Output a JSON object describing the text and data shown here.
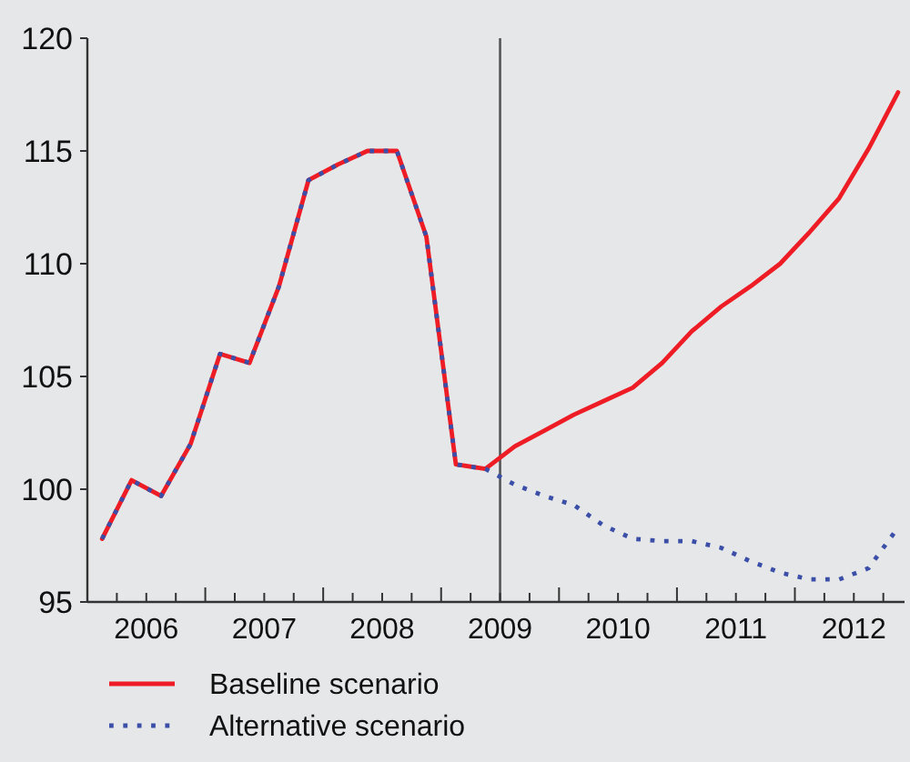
{
  "chart_data": {
    "type": "line",
    "x": [
      2006.125,
      2006.375,
      2006.625,
      2006.875,
      2007.125,
      2007.375,
      2007.625,
      2007.875,
      2008.125,
      2008.375,
      2008.625,
      2008.875,
      2009.125,
      2009.375,
      2009.625,
      2009.875,
      2010.125,
      2010.375,
      2010.625,
      2010.875,
      2011.125,
      2011.375,
      2011.625,
      2011.875,
      2012.125,
      2012.375,
      2012.625,
      2012.875
    ],
    "series": [
      {
        "name": "Baseline scenario",
        "color": "#ee1c25",
        "line_style": "solid",
        "values": [
          97.8,
          100.4,
          99.7,
          102.0,
          106.0,
          105.6,
          109.0,
          113.7,
          114.4,
          115.0,
          115.0,
          111.2,
          101.1,
          100.9,
          101.9,
          102.6,
          103.3,
          103.9,
          104.5,
          105.6,
          107.0,
          108.1,
          109.0,
          110.0,
          111.4,
          112.9,
          115.1,
          117.6
        ]
      },
      {
        "name": "Alternative scenario",
        "color": "#3b4fa8",
        "line_style": "dotted",
        "values": [
          97.8,
          100.4,
          99.7,
          102.0,
          106.0,
          105.6,
          109.0,
          113.7,
          114.4,
          115.0,
          115.0,
          111.2,
          101.1,
          100.9,
          100.2,
          99.7,
          99.3,
          98.4,
          97.8,
          97.7,
          97.7,
          97.4,
          96.8,
          96.3,
          96.0,
          96.0,
          96.5,
          98.3
        ]
      }
    ],
    "xlim": [
      2006,
      2012.93
    ],
    "ylim": [
      95,
      120
    ],
    "yticks": [
      95,
      100,
      105,
      110,
      115,
      120
    ],
    "xticks": [
      {
        "value": 2006,
        "label": null
      },
      {
        "value": 2006.25,
        "label": null
      },
      {
        "value": 2006.5,
        "label": "2006"
      },
      {
        "value": 2006.75,
        "label": null
      },
      {
        "value": 2007,
        "label": null
      },
      {
        "value": 2007.25,
        "label": null
      },
      {
        "value": 2007.5,
        "label": "2007"
      },
      {
        "value": 2007.75,
        "label": null
      },
      {
        "value": 2008,
        "label": null
      },
      {
        "value": 2008.25,
        "label": null
      },
      {
        "value": 2008.5,
        "label": "2008"
      },
      {
        "value": 2008.75,
        "label": null
      },
      {
        "value": 2009,
        "label": null
      },
      {
        "value": 2009.25,
        "label": null
      },
      {
        "value": 2009.5,
        "label": "2009"
      },
      {
        "value": 2009.75,
        "label": null
      },
      {
        "value": 2010,
        "label": null
      },
      {
        "value": 2010.25,
        "label": null
      },
      {
        "value": 2010.5,
        "label": "2010"
      },
      {
        "value": 2010.75,
        "label": null
      },
      {
        "value": 2011,
        "label": null
      },
      {
        "value": 2011.25,
        "label": null
      },
      {
        "value": 2011.5,
        "label": "2011"
      },
      {
        "value": 2011.75,
        "label": null
      },
      {
        "value": 2012,
        "label": null
      },
      {
        "value": 2012.25,
        "label": null
      },
      {
        "value": 2012.5,
        "label": "2012"
      },
      {
        "value": 2012.75,
        "label": null
      }
    ],
    "ref_lines": [
      {
        "axis": "x",
        "value": 2009.5,
        "color": "#555555",
        "line_style": "solid"
      }
    ],
    "grid": false,
    "legend": "bottom",
    "marker": "none"
  }
}
